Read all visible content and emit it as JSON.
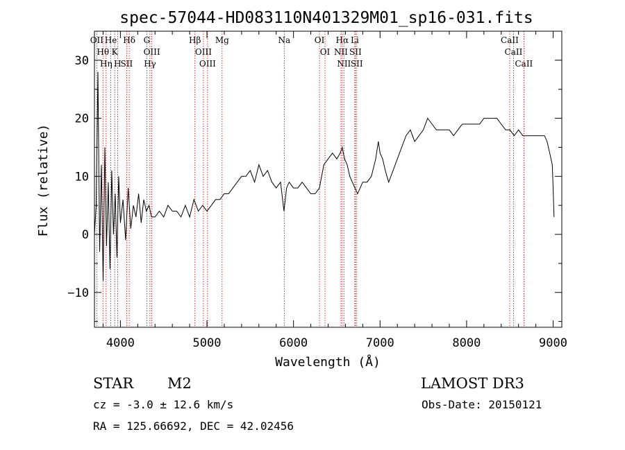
{
  "chart_data": {
    "type": "line",
    "title": "spec-57044-HD083110N401329M01_sp16-031.fits",
    "xlabel": "Wavelength (Å)",
    "ylabel": "Flux (relative)",
    "xlim": [
      3700,
      9100
    ],
    "ylim": [
      -16,
      35
    ],
    "x_ticks": [
      4000,
      5000,
      6000,
      7000,
      8000,
      9000
    ],
    "y_ticks": [
      -10,
      0,
      10,
      20,
      30
    ],
    "grid": false,
    "series": [
      {
        "x": [
          3700,
          3720,
          3740,
          3760,
          3780,
          3800,
          3820,
          3840,
          3860,
          3880,
          3900,
          3920,
          3940,
          3960,
          3980,
          4000,
          4030,
          4060,
          4090,
          4120,
          4150,
          4180,
          4210,
          4240,
          4270,
          4300,
          4330,
          4360,
          4400,
          4450,
          4500,
          4550,
          4600,
          4650,
          4700,
          4750,
          4800,
          4850,
          4900,
          4950,
          5000,
          5050,
          5100,
          5150,
          5200,
          5250,
          5300,
          5350,
          5400,
          5450,
          5500,
          5550,
          5600,
          5650,
          5700,
          5750,
          5800,
          5850,
          5890,
          5920,
          5950,
          6000,
          6050,
          6100,
          6150,
          6200,
          6250,
          6300,
          6350,
          6400,
          6450,
          6500,
          6540,
          6563,
          6590,
          6620,
          6650,
          6680,
          6710,
          6740,
          6770,
          6800,
          6850,
          6900,
          6950,
          6980,
          7000,
          7030,
          7060,
          7100,
          7150,
          7200,
          7250,
          7300,
          7350,
          7400,
          7450,
          7500,
          7550,
          7600,
          7650,
          7700,
          7750,
          7800,
          7850,
          7900,
          7950,
          8000,
          8050,
          8100,
          8150,
          8200,
          8250,
          8300,
          8350,
          8400,
          8450,
          8500,
          8550,
          8600,
          8650,
          8700,
          8750,
          8800,
          8850,
          8900,
          8930,
          8960,
          8990,
          9000,
          9010
        ],
        "y": [
          0,
          5,
          28,
          -3,
          12,
          -8,
          15,
          -2,
          9,
          -6,
          11,
          0,
          7,
          -4,
          10,
          2,
          6,
          -1,
          8,
          1,
          5,
          3,
          7,
          2,
          6,
          4,
          5,
          3,
          3,
          4,
          3,
          5,
          4,
          4,
          3,
          5,
          3,
          6,
          4,
          5,
          4,
          5,
          6,
          6,
          7,
          7,
          8,
          9,
          10,
          10,
          11,
          9,
          12,
          10,
          11,
          9,
          8,
          9,
          4,
          8,
          9,
          8,
          8,
          9,
          8,
          7,
          7,
          8,
          12,
          13,
          14,
          13,
          14,
          15,
          13,
          12,
          10,
          9,
          8,
          7,
          8,
          9,
          9,
          10,
          13,
          16,
          14,
          13,
          11,
          9,
          11,
          13,
          15,
          17,
          18,
          16,
          17,
          18,
          20,
          19,
          18,
          18,
          18,
          18,
          17,
          18,
          19,
          19,
          19,
          19,
          19,
          20,
          20,
          20,
          20,
          19,
          18,
          18,
          17,
          18,
          17,
          17,
          17,
          17,
          17,
          17,
          16,
          14,
          12,
          8,
          3
        ]
      }
    ],
    "annotations": [
      {
        "label": "OII",
        "x": 3727
      },
      {
        "label": "Hθ",
        "x": 3798
      },
      {
        "label": "Hη",
        "x": 3835
      },
      {
        "label": "He",
        "x": 3889
      },
      {
        "label": "K",
        "x": 3934
      },
      {
        "label": "H",
        "x": 3968
      },
      {
        "label": "Hδ",
        "x": 4102
      },
      {
        "label": "SII",
        "x": 4072
      },
      {
        "label": "G",
        "x": 4305
      },
      {
        "label": "OIII",
        "x": 4363
      },
      {
        "label": "Hγ",
        "x": 4341
      },
      {
        "label": "Hβ",
        "x": 4861
      },
      {
        "label": "OIII",
        "x": 4959
      },
      {
        "label": "OIII",
        "x": 5007
      },
      {
        "label": "Mg",
        "x": 5175
      },
      {
        "label": "Na",
        "x": 5893
      },
      {
        "label": "OI",
        "x": 6300
      },
      {
        "label": "OI",
        "x": 6364
      },
      {
        "label": "Hα",
        "x": 6563
      },
      {
        "label": "NII",
        "x": 6548
      },
      {
        "label": "NII",
        "x": 6583
      },
      {
        "label": "Li",
        "x": 6708
      },
      {
        "label": "SII",
        "x": 6716
      },
      {
        "label": "SII",
        "x": 6731
      },
      {
        "label": "CaII",
        "x": 8498
      },
      {
        "label": "CaII",
        "x": 8542
      },
      {
        "label": "CaII",
        "x": 8662
      }
    ]
  },
  "info": {
    "object_class": "STAR",
    "subclass": "M2",
    "survey": "LAMOST DR3",
    "cz": "cz = -3.0 ± 12.6 km/s",
    "obs_date": "Obs-Date: 20150121",
    "coords": "RA = 125.66692, DEC =  42.02456"
  },
  "colors": {
    "line": "#000000",
    "axis": "#000000",
    "marker": "#cc0000"
  }
}
